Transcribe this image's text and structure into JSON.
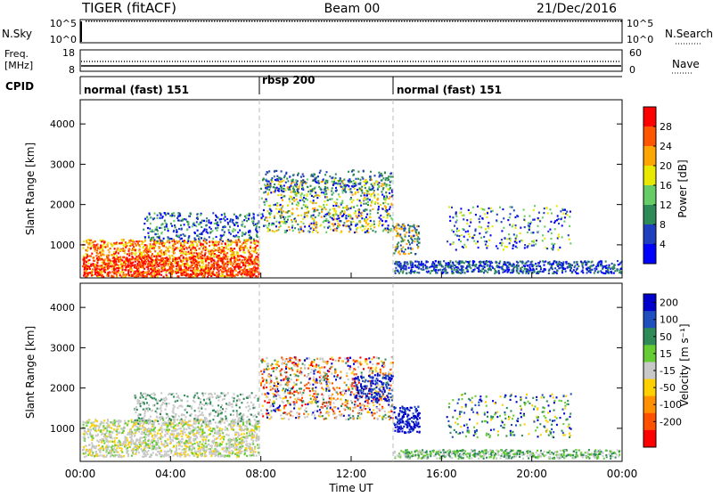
{
  "header": {
    "left": "TIGER (fitACF)",
    "center": "Beam 00",
    "right": "21/Dec/2016"
  },
  "panels": {
    "nsky": {
      "left_label": "N.Sky",
      "right_label": "N.Search",
      "ticks_left": [
        "10^5",
        "10^0"
      ],
      "ticks_right": [
        "10^5",
        "10^0"
      ]
    },
    "freq": {
      "left_label_1": "Freq.",
      "left_label_2": "[MHz]",
      "right_label": "Nave",
      "ticks_left": [
        "18",
        "8"
      ],
      "ticks_right": [
        "60",
        "0"
      ]
    },
    "cpid": {
      "label": "CPID",
      "segments": [
        {
          "label": "normal (fast) 151"
        },
        {
          "label": "rbsp 200"
        },
        {
          "label": "normal (fast) 151"
        }
      ]
    }
  },
  "chart_data": [
    {
      "type": "heatmap",
      "title": "",
      "ylabel": "Slant Range [km]",
      "xlabel": "",
      "ylim": [
        180,
        4600
      ],
      "yticks": [
        "1000",
        "2000",
        "3000",
        "4000"
      ],
      "colorbar_label": "Power [dB]",
      "colorbar_ticks": [
        "4",
        "8",
        "12",
        "16",
        "20",
        "24",
        "28"
      ],
      "colors": [
        "#0000ff",
        "#1f3fbf",
        "#2e8b57",
        "#66cc66",
        "#e8e800",
        "#ffa500",
        "#ff5500",
        "#ff0000"
      ]
    },
    {
      "type": "heatmap",
      "title": "",
      "ylabel": "Slant Range [km]",
      "xlabel": "Time UT",
      "ylim": [
        180,
        4600
      ],
      "yticks": [
        "1000",
        "2000",
        "3000",
        "4000"
      ],
      "xticks": [
        "00:00",
        "04:00",
        "08:00",
        "12:00",
        "16:00",
        "20:00",
        "00:00"
      ],
      "colorbar_label": "Velocity [m s⁻¹]",
      "colorbar_ticks": [
        "200",
        "100",
        "50",
        "15",
        "-15",
        "-50",
        "-100",
        "-200"
      ],
      "colors": [
        "#0000cc",
        "#1f4fbf",
        "#2e8b57",
        "#66cc33",
        "#c8c8c8",
        "#ffd000",
        "#ff9000",
        "#ff5000",
        "#ff0000"
      ]
    }
  ]
}
